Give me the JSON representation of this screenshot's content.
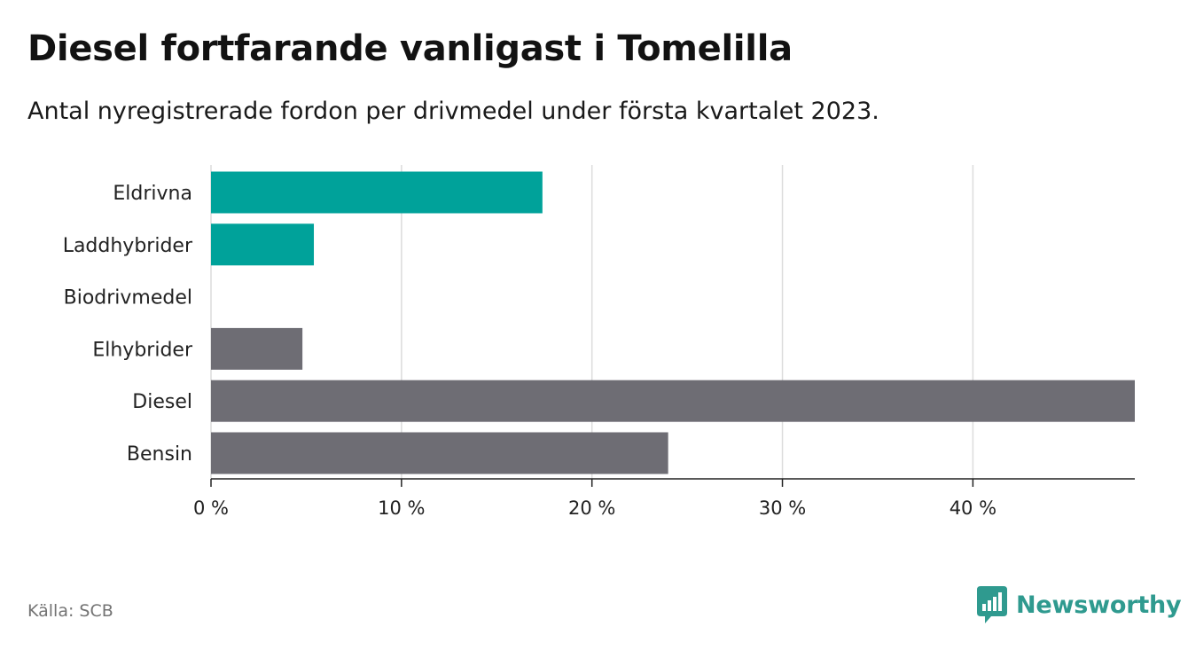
{
  "title": "Diesel fortfarande vanligast i Tomelilla",
  "subtitle": "Antal nyregistrerade fordon per drivmedel under första kvartalet 2023.",
  "source": "Källa: SCB",
  "brand": {
    "name": "Newsworthy",
    "icon": "newsworthy-logo-icon",
    "color": "#2f9a8f"
  },
  "chart_data": {
    "type": "bar",
    "orientation": "horizontal",
    "categories": [
      "Eldrivna",
      "Laddhybrider",
      "Biodrivmedel",
      "Elhybrider",
      "Diesel",
      "Bensin"
    ],
    "values": [
      17.4,
      5.4,
      0,
      4.8,
      48.5,
      24.0
    ],
    "colors": [
      "#00a29a",
      "#00a29a",
      "#00a29a",
      "#6e6d74",
      "#6e6d74",
      "#6e6d74"
    ],
    "xlim": [
      0,
      48.5
    ],
    "xticks": [
      0,
      10,
      20,
      30,
      40
    ],
    "xtick_labels": [
      "0 %",
      "10 %",
      "20 %",
      "30 %",
      "40 %"
    ],
    "grid": "vertical",
    "xlabel": "",
    "ylabel": ""
  }
}
